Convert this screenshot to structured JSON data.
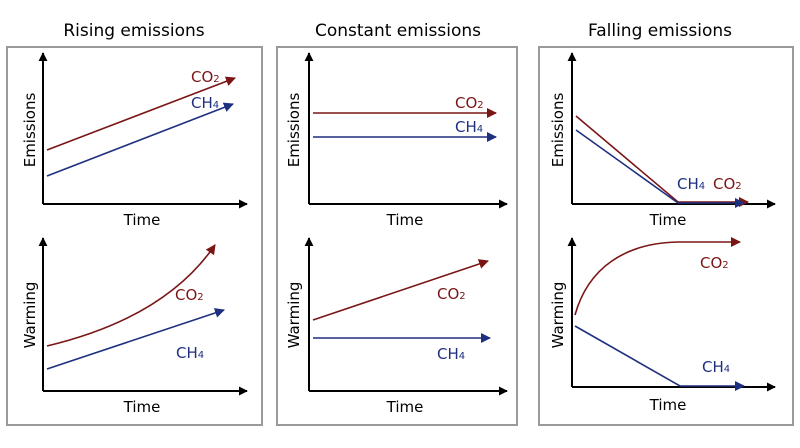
{
  "colors": {
    "co2": "#7a1515",
    "ch4": "#1e2f80",
    "axis": "#000000",
    "frame": "#9a9a9a"
  },
  "labels": {
    "time": "Time",
    "emissions": "Emissions",
    "warming": "Warming",
    "co2": "CO",
    "co2_sub": "2",
    "ch4": "CH",
    "ch4_sub": "4"
  },
  "panels": [
    {
      "title": "Rising emissions",
      "emissions": {
        "co2": "rising",
        "ch4": "rising"
      },
      "warming": {
        "co2": "accelerating rise",
        "ch4": "linear rise"
      }
    },
    {
      "title": "Constant emissions",
      "emissions": {
        "co2": "constant",
        "ch4": "constant"
      },
      "warming": {
        "co2": "linear rise",
        "ch4": "constant"
      }
    },
    {
      "title": "Falling emissions",
      "emissions": {
        "co2": "falls to zero",
        "ch4": "falls to zero"
      },
      "warming": {
        "co2": "rises then levels off",
        "ch4": "falls to zero"
      }
    }
  ]
}
